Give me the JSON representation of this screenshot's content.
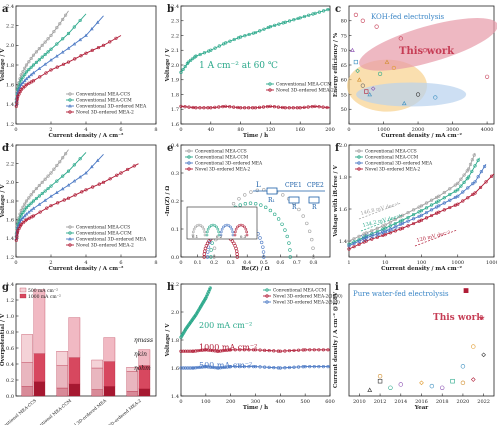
{
  "figure": {
    "panels": [
      "a",
      "b",
      "c",
      "d",
      "e",
      "f",
      "g",
      "h",
      "i"
    ]
  },
  "chart_data": [
    {
      "id": "a",
      "type": "line",
      "xlabel": "Current density / A cm⁻²",
      "ylabel": "Voltage / V",
      "xlim": [
        0,
        8
      ],
      "ylim": [
        1.2,
        2.4
      ],
      "xticks": [
        0,
        2,
        4,
        6,
        8
      ],
      "yticks": [
        1.2,
        1.4,
        1.6,
        1.8,
        2.0,
        2.2,
        2.4
      ],
      "legend": "bottom-right",
      "series": [
        {
          "name": "Conventional MEA-CCS",
          "color": "#a0a0a0",
          "marker": "circle",
          "x": [
            0.02,
            0.1,
            0.3,
            0.6,
            1.0,
            1.5,
            2.0,
            2.5,
            3.0
          ],
          "y": [
            1.45,
            1.58,
            1.7,
            1.8,
            1.9,
            2.0,
            2.1,
            2.22,
            2.35
          ]
        },
        {
          "name": "Conventional MEA-CCM",
          "color": "#2aa88a",
          "marker": "circle",
          "x": [
            0.02,
            0.1,
            0.3,
            0.6,
            1.0,
            1.5,
            2.0,
            3.0,
            4.0
          ],
          "y": [
            1.42,
            1.55,
            1.65,
            1.73,
            1.8,
            1.88,
            1.96,
            2.12,
            2.32
          ]
        },
        {
          "name": "Conventional 3D-ordered MEA",
          "color": "#4a78c4",
          "marker": "triangle",
          "x": [
            0.02,
            0.1,
            0.3,
            0.6,
            1.0,
            2.0,
            3.0,
            4.0,
            5.0
          ],
          "y": [
            1.4,
            1.52,
            1.6,
            1.66,
            1.72,
            1.85,
            1.97,
            2.1,
            2.3
          ]
        },
        {
          "name": "Novel 3D-ordered MEA-2",
          "color": "#b01c36",
          "marker": "circle",
          "x": [
            0.02,
            0.1,
            0.3,
            0.6,
            1.0,
            2.0,
            3.0,
            4.0,
            5.0,
            6.0
          ],
          "y": [
            1.38,
            1.48,
            1.55,
            1.6,
            1.64,
            1.75,
            1.83,
            1.92,
            2.0,
            2.1
          ]
        }
      ]
    },
    {
      "id": "b",
      "type": "line",
      "xlabel": "Time / h",
      "ylabel": "Voltage / V",
      "xlim": [
        0,
        200
      ],
      "ylim": [
        1.6,
        2.4
      ],
      "xticks": [
        0,
        40,
        80,
        120,
        160,
        200
      ],
      "yticks": [
        1.6,
        1.7,
        1.8,
        1.9,
        2.0,
        2.1,
        2.2,
        2.3,
        2.4
      ],
      "annotation": "1 A cm⁻² at 60 ℃",
      "legend": "center-right",
      "series": [
        {
          "name": "Conventional MEA-CCM",
          "color": "#2aa88a",
          "marker": "circle",
          "x": [
            0,
            10,
            20,
            40,
            60,
            80,
            100,
            120,
            140,
            160,
            180,
            200
          ],
          "y": [
            1.95,
            2.02,
            2.06,
            2.1,
            2.15,
            2.19,
            2.22,
            2.26,
            2.29,
            2.32,
            2.35,
            2.38
          ]
        },
        {
          "name": "Novel 3D-ordered MEA-2",
          "color": "#b01c36",
          "marker": "circle",
          "x": [
            0,
            20,
            40,
            60,
            80,
            100,
            120,
            140,
            160,
            180,
            200
          ],
          "y": [
            1.72,
            1.71,
            1.71,
            1.72,
            1.71,
            1.71,
            1.72,
            1.71,
            1.71,
            1.72,
            1.71
          ]
        }
      ]
    },
    {
      "id": "c",
      "type": "scatter",
      "xlabel": "Current density / mA cm⁻²",
      "ylabel": "Energy efficiency / %",
      "xlim": [
        0,
        4200
      ],
      "ylim": [
        45,
        85
      ],
      "xticks": [
        0,
        1000,
        2000,
        3000,
        4000
      ],
      "yticks": [
        50,
        55,
        60,
        65,
        70,
        75,
        80
      ],
      "annotations": [
        "KOH-fed electrolysis",
        "This work"
      ],
      "points": [
        {
          "x": 200,
          "y": 82,
          "shape": "circle",
          "color": "#c63d55"
        },
        {
          "x": 400,
          "y": 80,
          "shape": "circle",
          "color": "#c63d55"
        },
        {
          "x": 800,
          "y": 78,
          "shape": "circle",
          "color": "#c63d55"
        },
        {
          "x": 1500,
          "y": 74,
          "shape": "circle",
          "color": "#c63d55"
        },
        {
          "x": 2200,
          "y": 70,
          "shape": "circle",
          "color": "#c63d55"
        },
        {
          "x": 4000,
          "y": 61,
          "shape": "circle",
          "color": "#c63d55"
        },
        {
          "x": 100,
          "y": 70,
          "shape": "triangle",
          "color": "#8a4fb2"
        },
        {
          "x": 200,
          "y": 66,
          "shape": "square",
          "color": "#3b8fc0"
        },
        {
          "x": 250,
          "y": 63,
          "shape": "diamond",
          "color": "#2aa88a"
        },
        {
          "x": 300,
          "y": 60,
          "shape": "triangle",
          "color": "#d08c2a"
        },
        {
          "x": 400,
          "y": 58,
          "shape": "circle",
          "color": "#6c6c6c"
        },
        {
          "x": 500,
          "y": 56,
          "shape": "square",
          "color": "#b01c36"
        },
        {
          "x": 600,
          "y": 55,
          "shape": "triangle",
          "color": "#3b8fc0"
        },
        {
          "x": 700,
          "y": 57,
          "shape": "diamond",
          "color": "#8a4fb2"
        },
        {
          "x": 900,
          "y": 62,
          "shape": "circle",
          "color": "#2aa88a"
        },
        {
          "x": 1100,
          "y": 66,
          "shape": "triangle",
          "color": "#d08c2a"
        },
        {
          "x": 1300,
          "y": 64,
          "shape": "circle",
          "color": "#e09a2d"
        },
        {
          "x": 1600,
          "y": 52,
          "shape": "triangle",
          "color": "#3b8fc0"
        },
        {
          "x": 2000,
          "y": 55,
          "shape": "circle",
          "color": "#333333"
        },
        {
          "x": 2500,
          "y": 54,
          "shape": "circle",
          "color": "#3b8fc0"
        }
      ]
    },
    {
      "id": "d",
      "type": "line",
      "xlabel": "Current density / A cm⁻²",
      "ylabel": "Voltage / V",
      "xlim": [
        0,
        8
      ],
      "ylim": [
        1.2,
        2.4
      ],
      "xticks": [
        0,
        2,
        4,
        6,
        8
      ],
      "yticks": [
        1.2,
        1.4,
        1.6,
        1.8,
        2.0,
        2.2,
        2.4
      ],
      "legend": "bottom-right",
      "series": [
        {
          "name": "Conventional MEA-CCS",
          "color": "#a0a0a0",
          "marker": "circle",
          "x": [
            0.02,
            0.1,
            0.3,
            0.6,
            1.0,
            1.5,
            2.0,
            2.5,
            3.0
          ],
          "y": [
            1.45,
            1.58,
            1.7,
            1.8,
            1.9,
            2.0,
            2.1,
            2.22,
            2.35
          ]
        },
        {
          "name": "Conventional MEA-CCM",
          "color": "#2aa88a",
          "marker": "circle",
          "x": [
            0.02,
            0.1,
            0.3,
            0.6,
            1.0,
            1.5,
            2.0,
            3.0,
            4.0
          ],
          "y": [
            1.42,
            1.55,
            1.65,
            1.73,
            1.8,
            1.88,
            1.96,
            2.12,
            2.32
          ]
        },
        {
          "name": "Conventional 3D-ordered MEA",
          "color": "#4a78c4",
          "marker": "triangle",
          "x": [
            0.02,
            0.1,
            0.3,
            0.6,
            1.0,
            2.0,
            3.0,
            4.0,
            5.0
          ],
          "y": [
            1.4,
            1.52,
            1.6,
            1.66,
            1.72,
            1.85,
            1.97,
            2.1,
            2.3
          ]
        },
        {
          "name": "Novel 3D-ordered MEA-2",
          "color": "#b01c36",
          "marker": "circle",
          "x": [
            0.02,
            0.1,
            0.3,
            0.6,
            1.0,
            2.0,
            3.0,
            4.0,
            5.0,
            6.0,
            7.0
          ],
          "y": [
            1.38,
            1.48,
            1.55,
            1.6,
            1.64,
            1.75,
            1.83,
            1.92,
            2.0,
            2.1,
            2.2
          ]
        }
      ]
    },
    {
      "id": "e",
      "type": "scatter",
      "xlabel": "Re(Z) / Ω",
      "ylabel": "-Im(Z) / Ω",
      "xlim": [
        0.0,
        0.9
      ],
      "ylim": [
        0.0,
        0.4
      ],
      "xticks": [
        0.0,
        0.1,
        0.2,
        0.3,
        0.4,
        0.5,
        0.6,
        0.7,
        0.8
      ],
      "yticks": [
        0.0,
        0.1,
        0.2,
        0.3,
        0.4
      ],
      "inset_xticks": [
        0.1,
        0.2,
        0.3
      ],
      "circuit_labels": [
        "L",
        "R₁",
        "CPE1",
        "CPE2",
        "R",
        "R"
      ],
      "legend": "top-left",
      "series": [
        {
          "name": "Conventional MEA-CCS",
          "color": "#a0a0a0",
          "center": 0.5,
          "radius": 0.3
        },
        {
          "name": "Conventional MEA-CCM",
          "color": "#2aa88a",
          "center": 0.42,
          "radius": 0.24
        },
        {
          "name": "Conventional 3D-ordered MEA",
          "color": "#4a78c4",
          "center": 0.33,
          "radius": 0.17
        },
        {
          "name": "Novel 3D-ordered MEA-2",
          "color": "#b01c36",
          "center": 0.24,
          "radius": 0.1
        }
      ]
    },
    {
      "id": "f",
      "type": "line",
      "xlabel": "Current density / mA cm⁻²",
      "ylabel": "Voltage with iR-free / V",
      "xlim": [
        1,
        10000
      ],
      "xscale": "log",
      "ylim": [
        1.3,
        2.0
      ],
      "xticks": [
        1,
        10,
        100,
        1000,
        10000
      ],
      "yticks": [
        1.4,
        1.6,
        1.8,
        2.0
      ],
      "tafel_labels": [
        "146.8 mV dec⁻¹",
        "134.2 mV dec⁻¹",
        "130.3 mV dec⁻¹",
        "120 mV dec⁻¹"
      ],
      "legend": "top-left",
      "series": [
        {
          "name": "Conventional MEA-CCS",
          "color": "#a0a0a0",
          "x": [
            1,
            3,
            10,
            30,
            100,
            300,
            1000,
            2000,
            3000
          ],
          "y": [
            1.4,
            1.45,
            1.5,
            1.56,
            1.62,
            1.68,
            1.76,
            1.85,
            1.95
          ]
        },
        {
          "name": "Conventional MEA-CCM",
          "color": "#2aa88a",
          "x": [
            1,
            3,
            10,
            30,
            100,
            300,
            1000,
            2000,
            4000
          ],
          "y": [
            1.38,
            1.43,
            1.48,
            1.53,
            1.59,
            1.65,
            1.72,
            1.8,
            1.92
          ]
        },
        {
          "name": "Conventional 3D-ordered MEA",
          "color": "#4a78c4",
          "x": [
            1,
            3,
            10,
            30,
            100,
            300,
            1000,
            3000,
            6000
          ],
          "y": [
            1.37,
            1.42,
            1.46,
            1.51,
            1.56,
            1.62,
            1.68,
            1.77,
            1.88
          ]
        },
        {
          "name": "Novel 3D-ordered MEA-2",
          "color": "#b01c36",
          "x": [
            1,
            3,
            10,
            30,
            100,
            300,
            1000,
            3000,
            10000
          ],
          "y": [
            1.35,
            1.4,
            1.44,
            1.48,
            1.53,
            1.58,
            1.63,
            1.7,
            1.82
          ]
        }
      ]
    },
    {
      "id": "g",
      "type": "bar",
      "ylabel": "Overpotential / V",
      "ylim": [
        0,
        1.4
      ],
      "yticks": [
        0.0,
        0.2,
        0.4,
        0.6,
        0.8,
        1.0,
        1.2,
        1.4
      ],
      "categories": [
        "Conventional MEA-CCS",
        "Conventional MEA-CCM",
        "Conventional 3D-ordered MEA",
        "Novel 3D-ordered MEA-2"
      ],
      "legend_current": [
        "500 mA cm⁻²",
        "1000 mA cm⁻²"
      ],
      "components": [
        "ηmass",
        "ηkin",
        "ηohm"
      ],
      "series": [
        {
          "name": "500 mA cm⁻²",
          "ohm": [
            0.12,
            0.1,
            0.08,
            0.06
          ],
          "kin": [
            0.3,
            0.28,
            0.27,
            0.25
          ],
          "mass": [
            0.35,
            0.18,
            0.1,
            0.05
          ]
        },
        {
          "name": "1000 mA cm⁻²",
          "ohm": [
            0.18,
            0.15,
            0.12,
            0.09
          ],
          "kin": [
            0.35,
            0.33,
            0.31,
            0.29
          ],
          "mass": [
            0.8,
            0.5,
            0.3,
            0.2
          ]
        }
      ]
    },
    {
      "id": "h",
      "type": "line",
      "xlabel": "Time / h",
      "ylabel": "Voltage / V",
      "xlim": [
        0,
        600
      ],
      "ylim": [
        1.4,
        2.2
      ],
      "xticks": [
        0,
        100,
        200,
        300,
        400,
        500,
        600
      ],
      "yticks": [
        1.4,
        1.6,
        1.8,
        2.0,
        2.2
      ],
      "legend": "top-right",
      "current_labels": [
        "200 mA cm⁻²",
        "1000 mA cm⁻²",
        "500 mA cm⁻²"
      ],
      "series": [
        {
          "name": "Conventional MEA-CCM",
          "color": "#2aa88a",
          "x": [
            0,
            20,
            40,
            60,
            80,
            100,
            120
          ],
          "y": [
            1.82,
            1.88,
            1.93,
            1.98,
            2.04,
            2.1,
            2.18
          ]
        },
        {
          "name": "Novel 3D-ordered MEA-2(1000)",
          "color": "#b01c36",
          "x": [
            0,
            50,
            100,
            150,
            200,
            300,
            400,
            500,
            600
          ],
          "y": [
            1.72,
            1.72,
            1.73,
            1.72,
            1.73,
            1.73,
            1.72,
            1.73,
            1.73
          ]
        },
        {
          "name": "Novel 3D-ordered MEA-2(500)",
          "color": "#4a78c4",
          "x": [
            0,
            50,
            100,
            150,
            200,
            300,
            400,
            500,
            600
          ],
          "y": [
            1.6,
            1.6,
            1.61,
            1.6,
            1.61,
            1.61,
            1.6,
            1.61,
            1.61
          ]
        }
      ]
    },
    {
      "id": "i",
      "type": "scatter",
      "xlabel": "Year",
      "ylabel": "Current density / A cm⁻² @1.8V",
      "xlim": [
        2009,
        2023
      ],
      "ylim": [
        0,
        3.4
      ],
      "xticks": [
        2010,
        2012,
        2014,
        2016,
        2018,
        2020,
        2022
      ],
      "annotations": [
        "Pure water-fed electrolysis",
        "This work"
      ],
      "points": [
        {
          "x": 2011,
          "y": 0.18,
          "shape": "triangle",
          "color": "#333333"
        },
        {
          "x": 2012,
          "y": 0.45,
          "shape": "square",
          "color": "#333333"
        },
        {
          "x": 2012,
          "y": 0.6,
          "shape": "circle",
          "color": "#d08c2a"
        },
        {
          "x": 2013,
          "y": 0.25,
          "shape": "circle",
          "color": "#2aa88a"
        },
        {
          "x": 2014,
          "y": 0.35,
          "shape": "circle",
          "color": "#8a4fb2"
        },
        {
          "x": 2016,
          "y": 0.4,
          "shape": "diamond",
          "color": "#e09a2d"
        },
        {
          "x": 2017,
          "y": 0.3,
          "shape": "circle",
          "color": "#3b8fc0"
        },
        {
          "x": 2018,
          "y": 0.25,
          "shape": "circle",
          "color": "#8a4fb2"
        },
        {
          "x": 2019,
          "y": 0.45,
          "shape": "square",
          "color": "#2aa88a"
        },
        {
          "x": 2020,
          "y": 0.4,
          "shape": "circle",
          "color": "#d08c2a"
        },
        {
          "x": 2020,
          "y": 0.9,
          "shape": "circle",
          "color": "#3b8fc0"
        },
        {
          "x": 2021,
          "y": 0.5,
          "shape": "diamond",
          "color": "#b01c36"
        },
        {
          "x": 2021,
          "y": 1.5,
          "shape": "circle",
          "color": "#e09a2d"
        },
        {
          "x": 2022,
          "y": 1.25,
          "shape": "diamond",
          "color": "#333333"
        },
        {
          "x": 2020.3,
          "y": 3.2,
          "shape": "square",
          "color": "#b01c36"
        }
      ]
    }
  ],
  "colors": {
    "ccs": "#a0a0a0",
    "ccm": "#2aa88a",
    "ordered": "#4a78c4",
    "novel": "#b01c36",
    "annotation_blue": "#3b86c6",
    "this_work": "#c63d55"
  }
}
